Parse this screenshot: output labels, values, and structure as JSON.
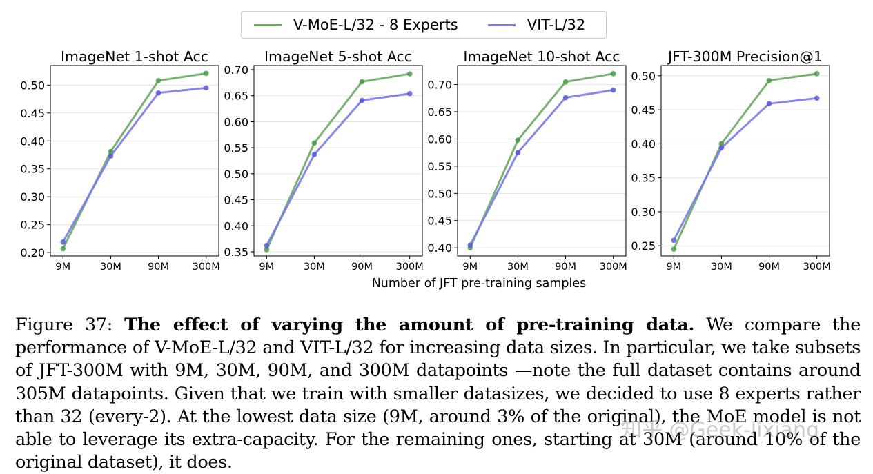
{
  "legend": {
    "items": [
      {
        "label": "V-MoE-L/32 - 8 Experts",
        "color": "#6aaa64"
      },
      {
        "label": "VIT-L/32",
        "color": "#7b7be6"
      }
    ]
  },
  "shared_xlabel": "Number of JFT pre-training samples",
  "colors": {
    "moe": "#6aaa64",
    "vit": "#7b7be6",
    "moe_marker": "#4c9a4a",
    "vit_marker": "#5a5ad8",
    "grid": "#e3e3e3"
  },
  "chart_data": [
    {
      "type": "line",
      "title": "ImageNet 1-shot Acc",
      "categories": [
        "9M",
        "30M",
        "90M",
        "300M"
      ],
      "yticks": [
        "0.20",
        "0.25",
        "0.30",
        "0.35",
        "0.40",
        "0.45",
        "0.50"
      ],
      "ylim": [
        0.194,
        0.535
      ],
      "series": [
        {
          "name": "V-MoE-L/32 - 8 Experts",
          "values": [
            0.207,
            0.381,
            0.508,
            0.521
          ]
        },
        {
          "name": "VIT-L/32",
          "values": [
            0.219,
            0.373,
            0.486,
            0.495
          ]
        }
      ]
    },
    {
      "type": "line",
      "title": "ImageNet 5-shot Acc",
      "categories": [
        "9M",
        "30M",
        "90M",
        "300M"
      ],
      "yticks": [
        "0.35",
        "0.40",
        "0.45",
        "0.50",
        "0.55",
        "0.60",
        "0.65",
        "0.70"
      ],
      "ylim": [
        0.342,
        0.708
      ],
      "series": [
        {
          "name": "V-MoE-L/32 - 8 Experts",
          "values": [
            0.354,
            0.559,
            0.677,
            0.692
          ]
        },
        {
          "name": "VIT-L/32",
          "values": [
            0.362,
            0.537,
            0.641,
            0.654
          ]
        }
      ]
    },
    {
      "type": "line",
      "title": "ImageNet 10-shot Acc",
      "categories": [
        "9M",
        "30M",
        "90M",
        "300M"
      ],
      "yticks": [
        "0.40",
        "0.45",
        "0.50",
        "0.55",
        "0.60",
        "0.65",
        "0.70"
      ],
      "ylim": [
        0.385,
        0.735
      ],
      "series": [
        {
          "name": "V-MoE-L/32 - 8 Experts",
          "values": [
            0.4,
            0.598,
            0.705,
            0.72
          ]
        },
        {
          "name": "VIT-L/32",
          "values": [
            0.405,
            0.575,
            0.676,
            0.69
          ]
        }
      ]
    },
    {
      "type": "line",
      "title": "JFT-300M Precision@1",
      "categories": [
        "9M",
        "30M",
        "90M",
        "300M"
      ],
      "yticks": [
        "0.25",
        "0.30",
        "0.35",
        "0.40",
        "0.45",
        "0.50"
      ],
      "ylim": [
        0.235,
        0.515
      ],
      "series": [
        {
          "name": "V-MoE-L/32 - 8 Experts",
          "values": [
            0.245,
            0.4,
            0.493,
            0.503
          ]
        },
        {
          "name": "VIT-L/32",
          "values": [
            0.258,
            0.394,
            0.459,
            0.467
          ]
        }
      ]
    }
  ],
  "caption": {
    "label": "Figure 37:",
    "bold": "The effect of varying the amount of pre-training data.",
    "text": "We compare the performance of V-MoE-L/32 and VIT-L/32 for increasing data sizes. In particular, we take subsets of JFT-300M with 9M, 30M, 90M, and 300M datapoints —note the full dataset contains around 305M datapoints. Given that we train with smaller datasizes, we decided to use 8 experts rather than 32 (every-2). At the lowest data size (9M, around 3% of the original), the MoE model is not able to leverage its extra-capacity. For the remaining ones, starting at 30M (around 10% of the original dataset), it does."
  },
  "watermark": "知乎 @Geek-lixiang"
}
